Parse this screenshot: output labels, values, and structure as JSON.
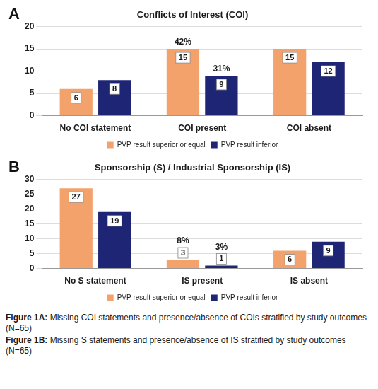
{
  "chart_data": [
    {
      "type": "bar",
      "panel": "A",
      "title": "Conflicts of Interest (COI)",
      "categories": [
        "No COI statement",
        "COI present",
        "COI absent"
      ],
      "series": [
        {
          "name": "PVP result superior or equal",
          "color": "#f4a26c",
          "values": [
            6,
            15,
            15
          ]
        },
        {
          "name": "PVP result inferior",
          "color": "#1e2574",
          "values": [
            8,
            9,
            12
          ]
        }
      ],
      "ylim": [
        0,
        20
      ],
      "yticks": [
        0,
        5,
        10,
        15,
        20
      ],
      "grid": true,
      "legend": "bottom",
      "data_labels": true,
      "annotations": [
        {
          "text": "42%",
          "category": "COI present",
          "series": "PVP result superior or equal"
        },
        {
          "text": "31%",
          "category": "COI present",
          "series": "PVP result inferior"
        }
      ]
    },
    {
      "type": "bar",
      "panel": "B",
      "title": "Sponsorship (S) / Industrial Sponsorship (IS)",
      "categories": [
        "No S statement",
        "IS present",
        "IS absent"
      ],
      "series": [
        {
          "name": "PVP result superior or equal",
          "color": "#f4a26c",
          "values": [
            27,
            3,
            6
          ]
        },
        {
          "name": "PVP result inferior",
          "color": "#1e2574",
          "values": [
            19,
            1,
            9
          ]
        }
      ],
      "ylim": [
        0,
        30
      ],
      "yticks": [
        0,
        5,
        10,
        15,
        20,
        25,
        30
      ],
      "grid": true,
      "legend": "bottom",
      "data_labels": true,
      "annotations": [
        {
          "text": "8%",
          "category": "IS present",
          "series": "PVP result superior or equal"
        },
        {
          "text": "3%",
          "category": "IS present",
          "series": "PVP result inferior"
        }
      ]
    }
  ],
  "captions": [
    "Figure 1A: Missing COI statements and presence/absence of COIs stratified by study outcomes (N=65)",
    "Figure 1B: Missing S statements and presence/absence of IS stratified by study outcomes (N=65)"
  ]
}
